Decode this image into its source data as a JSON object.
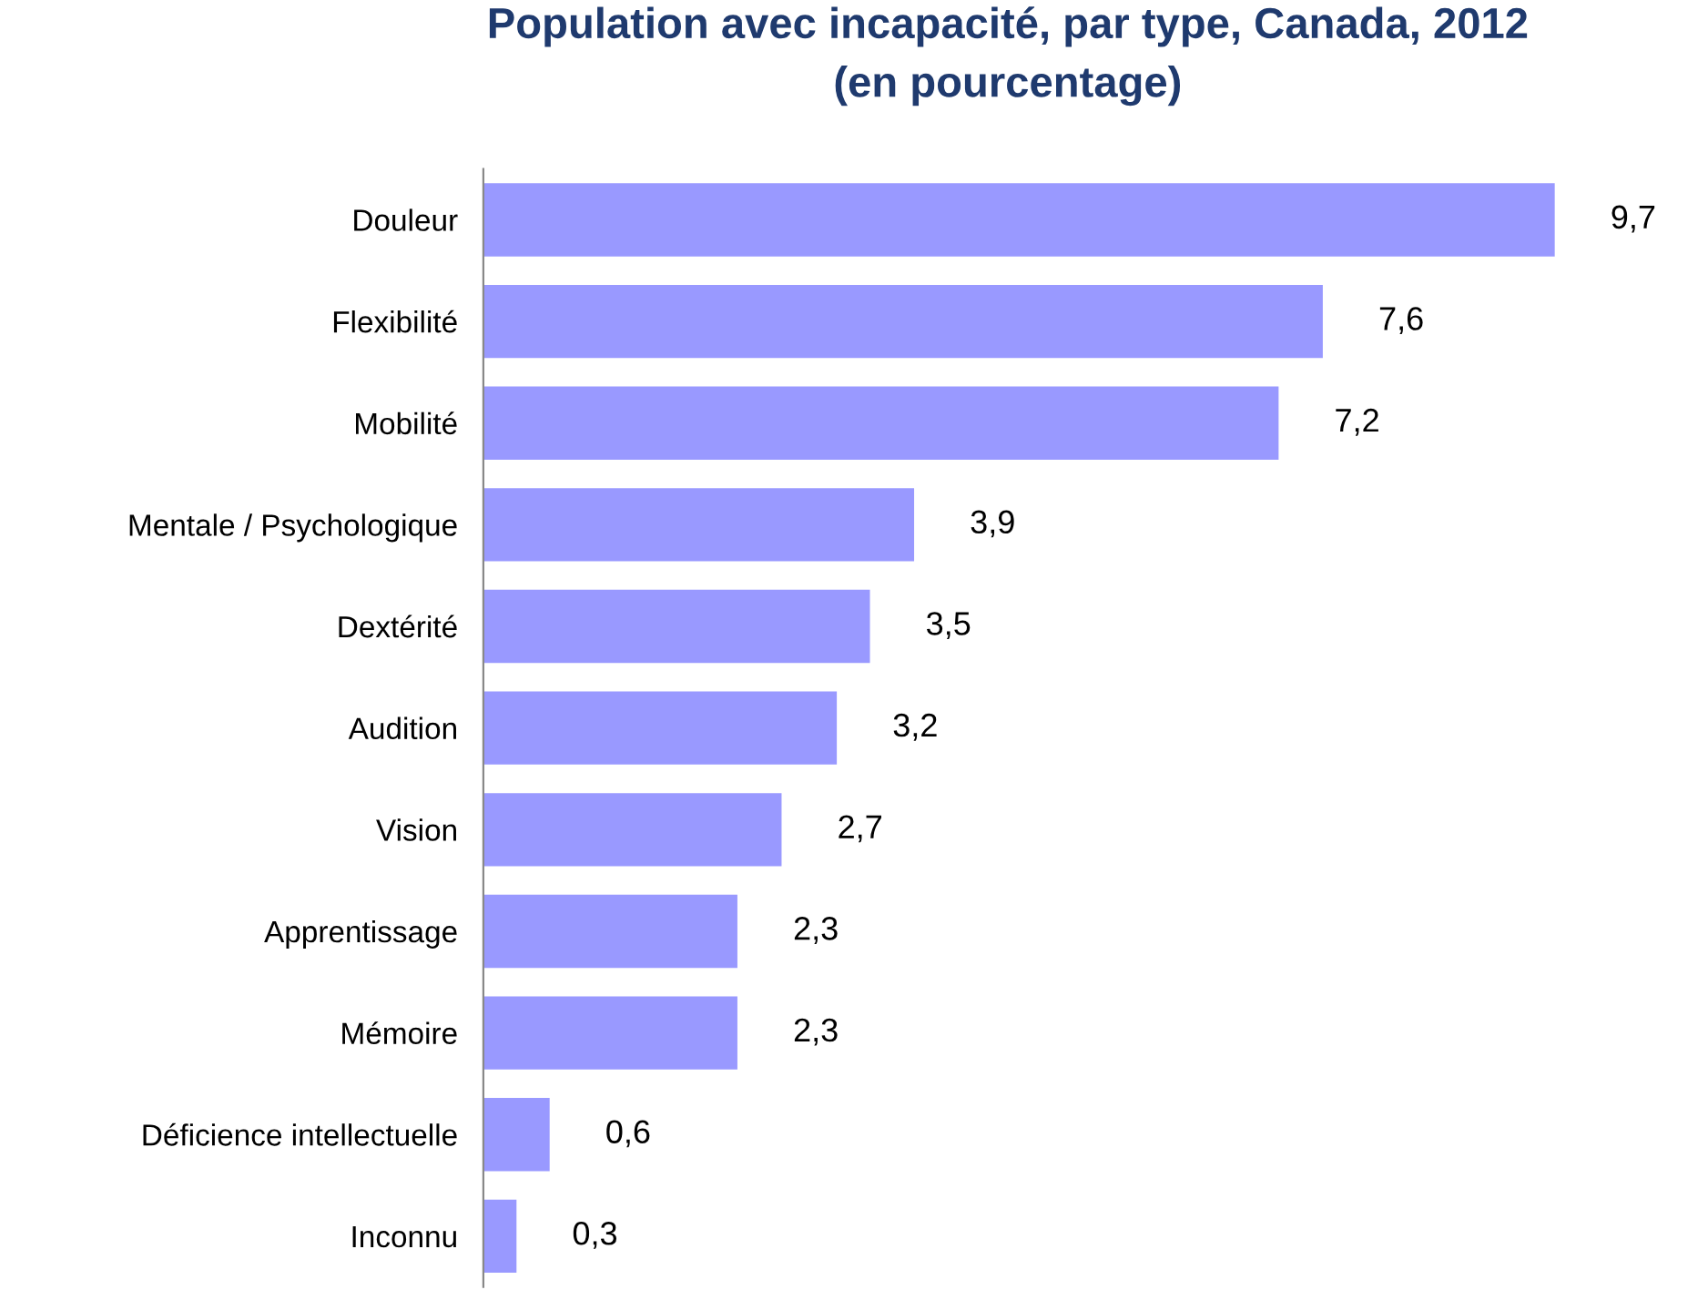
{
  "chart_data": {
    "type": "bar",
    "orientation": "horizontal",
    "title": "Population avec incapacité, par type, Canada, 2012\n(en pourcentage)",
    "categories": [
      "Douleur",
      "Flexibilité",
      "Mobilité",
      "Mentale / Psychologique",
      "Dextérité",
      "Audition",
      "Vision",
      "Apprentissage",
      "Mémoire",
      "Déficience intellectuelle",
      "Inconnu"
    ],
    "values": [
      9.7,
      7.6,
      7.2,
      3.9,
      3.5,
      3.2,
      2.7,
      2.3,
      2.3,
      0.6,
      0.3
    ],
    "value_labels": [
      "9,7",
      "7,6",
      "7,2",
      "3,9",
      "3,5",
      "3,2",
      "2,7",
      "2,3",
      "2,3",
      "0,6",
      "0,3"
    ],
    "color": "#9999ff",
    "grid": false,
    "legend": false,
    "tick_labels": "y"
  }
}
